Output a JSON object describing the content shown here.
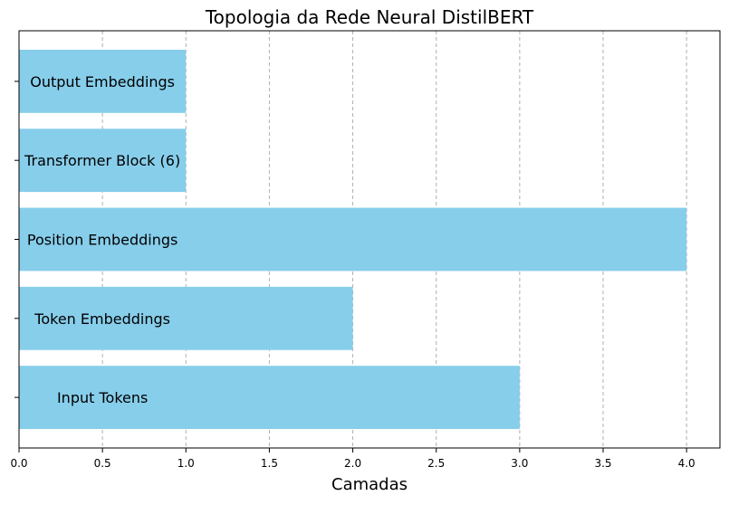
{
  "chart_data": {
    "type": "bar",
    "orientation": "horizontal",
    "title": "Topologia da Rede Neural DistilBERT",
    "xlabel": "Camadas",
    "ylabel": "",
    "categories": [
      "Input Tokens",
      "Token Embeddings",
      "Position Embeddings",
      "Transformer Block (6)",
      "Output Embeddings"
    ],
    "values": [
      3,
      2,
      4,
      1,
      1
    ],
    "xlim": [
      0,
      4.2
    ],
    "xticks": [
      0.0,
      0.5,
      1.0,
      1.5,
      2.0,
      2.5,
      3.0,
      3.5,
      4.0
    ],
    "xtick_labels": [
      "0.0",
      "0.5",
      "1.0",
      "1.5",
      "2.0",
      "2.5",
      "3.0",
      "3.5",
      "4.0"
    ],
    "grid": "x-dashed",
    "bar_color": "#87ceeb",
    "grid_color": "#b0b0b0",
    "bar_labels": "category names drawn inside bars"
  }
}
